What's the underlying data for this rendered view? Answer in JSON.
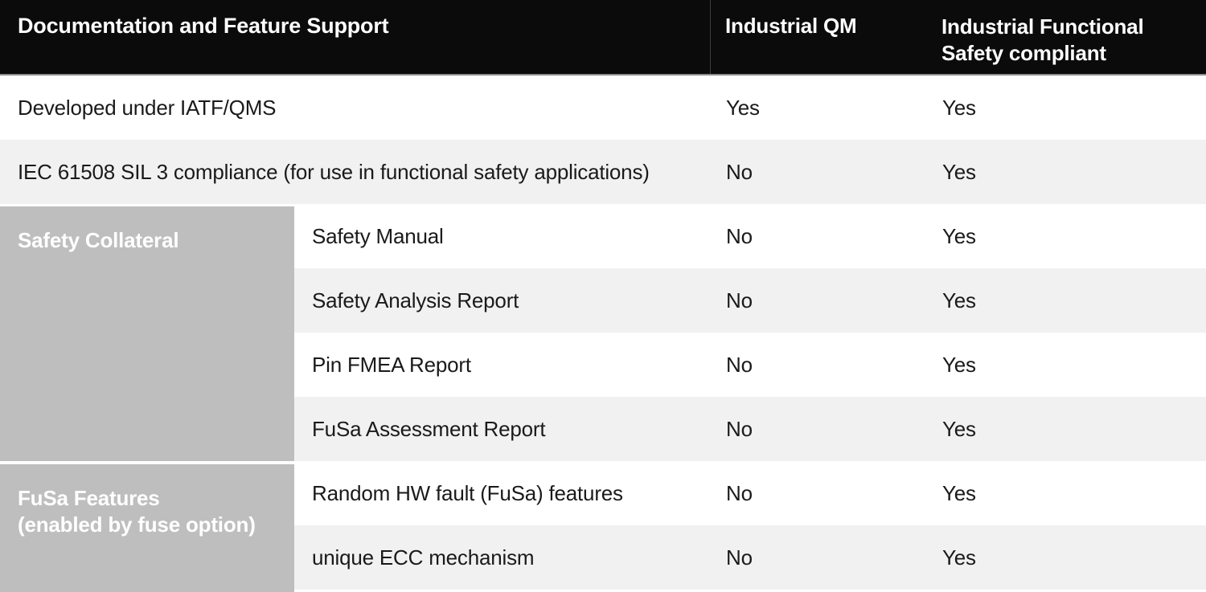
{
  "header": {
    "feature_col": "Documentation and Feature Support",
    "qm_col": "Industrial QM",
    "fusa_col": "Industrial Functional Safety compliant"
  },
  "groups": {
    "safety_collateral": {
      "label": "Safety Collateral"
    },
    "fusa_features": {
      "label_line1": "FuSa Features",
      "label_line2": "(enabled by fuse option)"
    }
  },
  "rows": [
    {
      "feature": "Developed under IATF/QMS",
      "industrial_qm": "Yes",
      "industrial_fusa": "Yes"
    },
    {
      "feature": "IEC 61508 SIL 3 compliance (for use in functional safety applications)",
      "industrial_qm": "No",
      "industrial_fusa": "Yes"
    },
    {
      "feature": "Safety Manual",
      "industrial_qm": "No",
      "industrial_fusa": "Yes"
    },
    {
      "feature": "Safety Analysis Report",
      "industrial_qm": "No",
      "industrial_fusa": "Yes"
    },
    {
      "feature": "Pin FMEA Report",
      "industrial_qm": "No",
      "industrial_fusa": "Yes"
    },
    {
      "feature": "FuSa Assessment Report",
      "industrial_qm": "No",
      "industrial_fusa": "Yes"
    },
    {
      "feature": "Random HW fault (FuSa) features",
      "industrial_qm": "No",
      "industrial_fusa": "Yes"
    },
    {
      "feature": "unique ECC mechanism",
      "industrial_qm": "No",
      "industrial_fusa": "Yes"
    }
  ],
  "colors": {
    "header_bg": "#0b0b0b",
    "header_text": "#ffffff",
    "header_divider": "#3d3d3d",
    "header_underline": "#8d8d8d",
    "row_white": "#ffffff",
    "row_alt": "#f1f1f1",
    "group_bg": "#bebebe",
    "group_text": "#ffffff",
    "body_text": "#1a1a1a"
  }
}
